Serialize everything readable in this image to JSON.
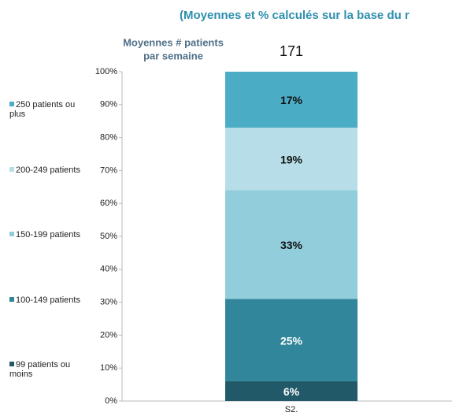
{
  "chart_data": {
    "type": "stacked_bar",
    "title": "(Moyennes et % calculés sur la base du r",
    "average_label": [
      "Moyennes # patients",
      "par semaine"
    ],
    "average_value": 171,
    "categories": [
      "S2."
    ],
    "series": [
      {
        "name": "99 patients ou moins",
        "color": "#215968",
        "values": [
          6
        ],
        "value_labels": [
          "6%"
        ]
      },
      {
        "name": "100-149 patients",
        "color": "#31869b",
        "values": [
          25
        ],
        "value_labels": [
          "25%"
        ]
      },
      {
        "name": "150-199 patients",
        "color": "#92cddc",
        "values": [
          33
        ],
        "value_labels": [
          "33%"
        ]
      },
      {
        "name": "200-249 patients",
        "color": "#b7dee8",
        "values": [
          19
        ],
        "value_labels": [
          "19%"
        ]
      },
      {
        "name": "250 patients ou plus",
        "color": "#4bacc6",
        "values": [
          17
        ],
        "value_labels": [
          "17%"
        ]
      }
    ],
    "ylim": [
      0,
      100
    ],
    "yticks": [
      {
        "value": 0,
        "label": "0%"
      },
      {
        "value": 10,
        "label": "10%"
      },
      {
        "value": 20,
        "label": "20%"
      },
      {
        "value": 30,
        "label": "30%"
      },
      {
        "value": 40,
        "label": "40%"
      },
      {
        "value": 50,
        "label": "50%"
      },
      {
        "value": 60,
        "label": "60%"
      },
      {
        "value": 70,
        "label": "70%"
      },
      {
        "value": 80,
        "label": "80%"
      },
      {
        "value": 90,
        "label": "90%"
      },
      {
        "value": 100,
        "label": "100%"
      }
    ],
    "legend": "left"
  }
}
